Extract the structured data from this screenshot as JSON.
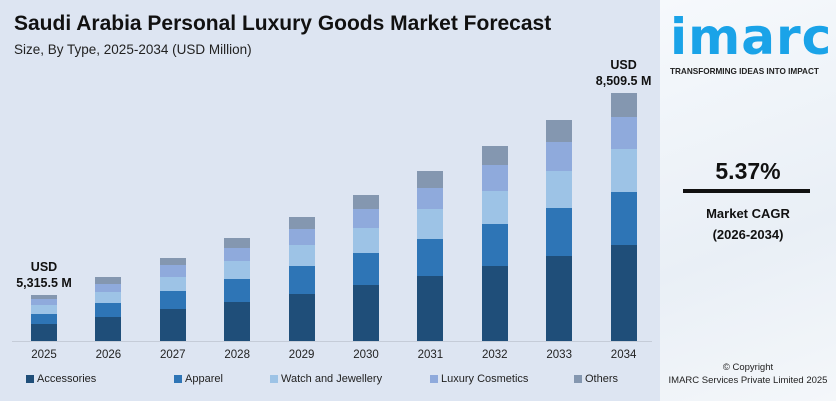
{
  "colors": {
    "Accessories": "#1f4e79",
    "Apparel": "#2e75b6",
    "Watch and Jewellery": "#9dc3e6",
    "Luxury Cosmetics": "#8faadc",
    "Others": "#8497b0"
  },
  "brand": {
    "logo_text": "imarc",
    "tagline": "TRANSFORMING IDEAS INTO IMPACT",
    "color": "#1aa3e8"
  },
  "side": {
    "cagr": "5.37%",
    "cagr_label": "Market CAGR",
    "cagr_period": "(2026-2034)",
    "copyright": "© Copyright",
    "company": "IMARC Services Private Limited 2025"
  },
  "chart_data": {
    "type": "bar",
    "stacked": true,
    "title": "Saudi Arabia Personal Luxury Goods Market Forecast",
    "subtitle": "Size, By Type, 2025-2034 (USD Million)",
    "xlabel": "",
    "ylabel": "",
    "grid": false,
    "legend_position": "bottom",
    "categories": [
      "2025",
      "2026",
      "2027",
      "2028",
      "2029",
      "2030",
      "2031",
      "2032",
      "2033",
      "2034"
    ],
    "series": [
      {
        "name": "Accessories",
        "values": [
          1964,
          2100,
          2290,
          2380,
          2474,
          2633,
          2767,
          2959,
          3098,
          3294
        ]
      },
      {
        "name": "Apparel",
        "values": [
          1156,
          1200,
          1233,
          1382,
          1471,
          1521,
          1588,
          1659,
          1765,
          1819
        ]
      },
      {
        "name": "Watch and Jewellery",
        "values": [
          1040,
          1000,
          1057,
          1075,
          1137,
          1170,
          1281,
          1300,
          1372,
          1475
        ]
      },
      {
        "name": "Luxury Cosmetics",
        "values": [
          693,
          700,
          793,
          768,
          802,
          878,
          922,
          1031,
          1059,
          1098
        ]
      },
      {
        "name": "Others",
        "values": [
          462.5,
          601,
          529,
          614,
          669,
          703,
          718,
          717,
          784,
          823.5
        ]
      }
    ],
    "annotations": [
      {
        "category": "2025",
        "line1": "USD",
        "line2": "5,315.5 M"
      },
      {
        "category": "2034",
        "line1": "USD",
        "line2": "8,509.5 M"
      }
    ]
  }
}
